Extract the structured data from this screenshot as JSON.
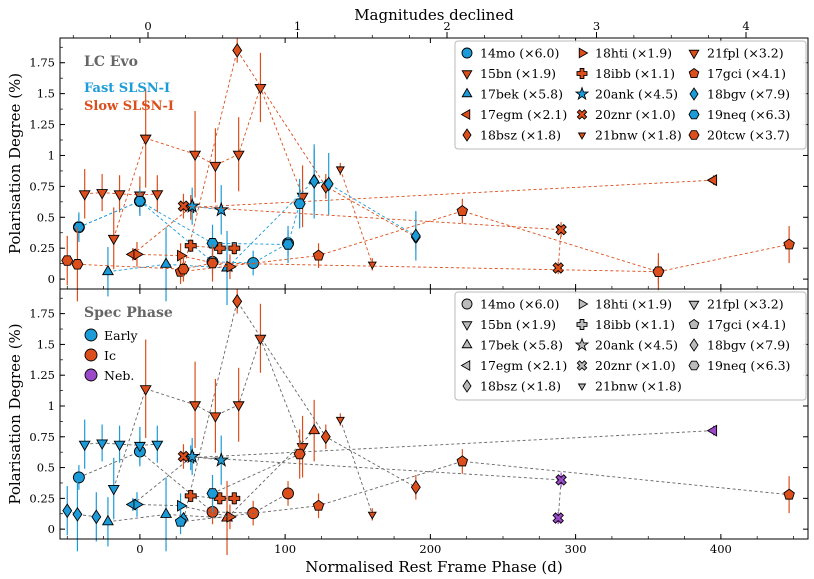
{
  "chart_data": [
    {
      "type": "scatter",
      "panel": "top",
      "title": "LC Evo",
      "top_axis_label": "Magnitudes declined",
      "top_ticks": [
        0,
        1,
        2,
        3,
        4
      ],
      "xlabel": "",
      "ylabel": "Polarisation Degree (%)",
      "xlim": [
        -55,
        460
      ],
      "ylim": [
        -0.08,
        1.95
      ],
      "x_ticks": [
        0,
        100,
        200,
        300,
        400
      ],
      "y_ticks": [
        0.0,
        0.25,
        0.5,
        0.75,
        1.0,
        1.25,
        1.5,
        1.75
      ],
      "group_labels": [
        {
          "label": "Fast SLSN-I",
          "color": "#1b9bd7"
        },
        {
          "label": "Slow SLSN-I",
          "color": "#dc4f1c"
        }
      ],
      "legend": [
        "14mo (×6.0)",
        "15bn (×1.9)",
        "17bek (×5.8)",
        "17egm (×2.1)",
        "18bsz (×1.8)",
        "18hti (×1.9)",
        "18ibb (×1.1)",
        "20ank (×4.5)",
        "20znr (×1.0)",
        "21bnw (×1.8)",
        "21fpl (×3.2)",
        "17gci (×4.1)",
        "18bgv (×7.9)",
        "19neq (×6.3)",
        "20tcw (×3.7)"
      ],
      "series": [
        {
          "name": "14mo",
          "marker": "circle",
          "color": "#1b9bd7",
          "connect": true,
          "points": [
            [
              -42,
              0.42,
              0.1
            ],
            [
              0,
              0.63,
              0.12
            ],
            [
              50,
              0.14,
              0.1
            ],
            [
              78,
              0.13,
              0.1
            ],
            [
              102,
              0.29,
              0.1
            ]
          ]
        },
        {
          "name": "15bn",
          "marker": "tri_down",
          "color": "#dc4f1c",
          "connect": true,
          "points": [
            [
              -18,
              0.33,
              0.25
            ],
            [
              4,
              1.14,
              0.4
            ],
            [
              38,
              1.01,
              0.35
            ],
            [
              52,
              0.92,
              0.3
            ],
            [
              68,
              1.01,
              0.3
            ],
            [
              83,
              1.55,
              0.28
            ],
            [
              112,
              0.67,
              0.25
            ]
          ]
        },
        {
          "name": "17bek",
          "marker": "tri_up",
          "color": "#1b9bd7",
          "connect": true,
          "points": [
            [
              -22,
              0.06,
              0.2
            ],
            [
              18,
              0.12,
              0.3
            ],
            [
              60,
              0.09,
              0.3
            ],
            [
              120,
              0.8,
              0.25
            ]
          ]
        },
        {
          "name": "17egm",
          "marker": "tri_left",
          "color": "#dc4f1c",
          "connect": true,
          "points": [
            [
              -5,
              0.2,
              0.05
            ],
            [
              35,
              0.58,
              0.1
            ],
            [
              395,
              0.8,
              0.04
            ]
          ]
        },
        {
          "name": "18bsz",
          "marker": "diamond",
          "color": "#dc4f1c",
          "connect": true,
          "points": [
            [
              30,
              0.08,
              0.05
            ],
            [
              67,
              1.85,
              0.1
            ],
            [
              128,
              0.75,
              0.1
            ],
            [
              190,
              0.34,
              0.1
            ]
          ]
        },
        {
          "name": "18hti",
          "marker": "tri_right",
          "color": "#dc4f1c",
          "connect": true,
          "points": [
            [
              -2,
              0.2,
              0.1
            ],
            [
              28,
              0.19,
              0.1
            ],
            [
              62,
              0.1,
              0.1
            ]
          ]
        },
        {
          "name": "18ibb",
          "marker": "plus",
          "color": "#dc4f1c",
          "connect": true,
          "points": [
            [
              35,
              0.27,
              0.05
            ],
            [
              55,
              0.25,
              0.05
            ],
            [
              65,
              0.25,
              0.05
            ]
          ]
        },
        {
          "name": "20ank",
          "marker": "star",
          "color": "#1b9bd7",
          "connect": true,
          "points": [
            [
              36,
              0.59,
              0.15
            ],
            [
              56,
              0.56,
              0.2
            ]
          ]
        },
        {
          "name": "20znr",
          "marker": "x",
          "color": "#dc4f1c",
          "connect": true,
          "points": [
            [
              30,
              0.59,
              0.1
            ],
            [
              290,
              0.4,
              0.06
            ],
            [
              288,
              0.09,
              0.05
            ]
          ]
        },
        {
          "name": "21bnw",
          "marker": "tri_down_s",
          "color": "#dc4f1c",
          "connect": true,
          "points": [
            [
              138,
              0.89,
              0.05
            ],
            [
              160,
              0.12,
              0.05
            ]
          ]
        },
        {
          "name": "21fpl",
          "marker": "tri_down",
          "color": "#dc4f1c",
          "connect": true,
          "points": [
            [
              -38,
              0.69,
              0.2
            ],
            [
              -26,
              0.7,
              0.15
            ],
            [
              -14,
              0.69,
              0.15
            ],
            [
              0,
              0.68,
              0.15
            ],
            [
              12,
              0.69,
              0.15
            ]
          ]
        },
        {
          "name": "17gci",
          "marker": "pentagon",
          "color": "#dc4f1c",
          "connect": true,
          "points": [
            [
              28,
              0.06,
              0.1
            ],
            [
              123,
              0.19,
              0.1
            ],
            [
              222,
              0.55,
              0.1
            ],
            [
              357,
              0.06,
              0.15
            ],
            [
              447,
              0.28,
              0.15
            ]
          ]
        },
        {
          "name": "18bgv",
          "marker": "diamond",
          "color": "#1b9bd7",
          "connect": true,
          "points": [
            [
              120,
              0.79,
              0.3
            ],
            [
              130,
              0.77,
              0.25
            ],
            [
              190,
              0.35,
              0.2
            ]
          ]
        },
        {
          "name": "19neq",
          "marker": "hexagon",
          "color": "#1b9bd7",
          "connect": true,
          "points": [
            [
              -42,
              0.42,
              0.12
            ],
            [
              0,
              0.63,
              0.1
            ],
            [
              50,
              0.29,
              0.15
            ],
            [
              102,
              0.28,
              0.15
            ],
            [
              110,
              0.61,
              0.2
            ]
          ]
        },
        {
          "name": "20tcw",
          "marker": "hexagon",
          "color": "#dc4f1c",
          "connect": true,
          "points": [
            [
              -50,
              0.15,
              0.2
            ],
            [
              -43,
              0.12,
              0.3
            ],
            [
              30,
              0.08,
              0.1
            ],
            [
              50,
              0.13,
              0.15
            ],
            [
              357,
              0.06,
              0.1
            ]
          ]
        }
      ]
    },
    {
      "type": "scatter",
      "panel": "bottom",
      "title": "Spec Phase",
      "xlabel": "Normalised Rest Frame Phase (d)",
      "ylabel": "Polarisation Degree (%)",
      "xlim": [
        -55,
        460
      ],
      "ylim": [
        -0.08,
        1.95
      ],
      "x_ticks": [
        0,
        100,
        200,
        300,
        400
      ],
      "y_ticks": [
        0.0,
        0.25,
        0.5,
        0.75,
        1.0,
        1.25,
        1.5,
        1.75
      ],
      "color_legend": [
        {
          "label": "Early",
          "color": "#1b9bd7"
        },
        {
          "label": "Ic",
          "color": "#dc4f1c"
        },
        {
          "label": "Neb.",
          "color": "#9b49c8"
        }
      ],
      "legend": [
        "14mo (×6.0)",
        "15bn (×1.9)",
        "17bek (×5.8)",
        "17egm (×2.1)",
        "18bsz (×1.8)",
        "18hti (×1.9)",
        "18ibb (×1.1)",
        "20ank (×4.5)",
        "20znr (×1.0)",
        "21bnw (×1.8)",
        "21fpl (×3.2)",
        "17gci (×4.1)",
        "18bgv (×7.9)",
        "19neq (×6.3)"
      ],
      "series": [
        {
          "name": "14mo",
          "marker": "circle",
          "points": [
            [
              -42,
              0.42,
              0.1,
              "E"
            ],
            [
              0,
              0.63,
              0.12,
              "E"
            ],
            [
              50,
              0.14,
              0.1,
              "I"
            ],
            [
              78,
              0.13,
              0.1,
              "I"
            ],
            [
              102,
              0.29,
              0.1,
              "I"
            ]
          ]
        },
        {
          "name": "15bn",
          "marker": "tri_down",
          "points": [
            [
              -18,
              0.33,
              0.25,
              "E"
            ],
            [
              4,
              1.14,
              0.4,
              "I"
            ],
            [
              38,
              1.01,
              0.35,
              "I"
            ],
            [
              52,
              0.92,
              0.3,
              "I"
            ],
            [
              68,
              1.01,
              0.3,
              "I"
            ],
            [
              83,
              1.55,
              0.28,
              "I"
            ],
            [
              112,
              0.67,
              0.25,
              "I"
            ]
          ]
        },
        {
          "name": "17bek",
          "marker": "tri_up",
          "points": [
            [
              -22,
              0.06,
              0.2,
              "E"
            ],
            [
              18,
              0.12,
              0.3,
              "E"
            ],
            [
              60,
              0.09,
              0.3,
              "I"
            ],
            [
              120,
              0.8,
              0.25,
              "I"
            ]
          ]
        },
        {
          "name": "17egm",
          "marker": "tri_left",
          "points": [
            [
              -5,
              0.2,
              0.05,
              "E"
            ],
            [
              35,
              0.58,
              0.1,
              "E"
            ],
            [
              395,
              0.8,
              0.04,
              "N"
            ]
          ]
        },
        {
          "name": "18bsz",
          "marker": "diamond",
          "points": [
            [
              30,
              0.08,
              0.05,
              "E"
            ],
            [
              67,
              1.85,
              0.1,
              "I"
            ],
            [
              128,
              0.75,
              0.1,
              "I"
            ],
            [
              190,
              0.34,
              0.1,
              "I"
            ]
          ]
        },
        {
          "name": "18hti",
          "marker": "tri_right",
          "points": [
            [
              -2,
              0.2,
              0.1,
              "E"
            ],
            [
              28,
              0.19,
              0.1,
              "E"
            ],
            [
              62,
              0.1,
              0.1,
              "I"
            ]
          ]
        },
        {
          "name": "18ibb",
          "marker": "plus",
          "points": [
            [
              35,
              0.27,
              0.05,
              "I"
            ],
            [
              55,
              0.25,
              0.05,
              "I"
            ],
            [
              65,
              0.25,
              0.05,
              "I"
            ]
          ]
        },
        {
          "name": "20ank",
          "marker": "star",
          "points": [
            [
              36,
              0.59,
              0.15,
              "E"
            ],
            [
              56,
              0.56,
              0.2,
              "E"
            ]
          ]
        },
        {
          "name": "20znr",
          "marker": "x",
          "points": [
            [
              30,
              0.59,
              0.1,
              "I"
            ],
            [
              290,
              0.4,
              0.06,
              "N"
            ],
            [
              288,
              0.09,
              0.05,
              "N"
            ]
          ]
        },
        {
          "name": "21bnw",
          "marker": "tri_down_s",
          "points": [
            [
              138,
              0.89,
              0.05,
              "I"
            ],
            [
              160,
              0.12,
              0.05,
              "I"
            ]
          ]
        },
        {
          "name": "21fpl",
          "marker": "tri_down",
          "points": [
            [
              -38,
              0.69,
              0.2,
              "E"
            ],
            [
              -26,
              0.7,
              0.15,
              "E"
            ],
            [
              -14,
              0.69,
              0.15,
              "E"
            ],
            [
              0,
              0.68,
              0.15,
              "E"
            ],
            [
              12,
              0.69,
              0.15,
              "E"
            ]
          ]
        },
        {
          "name": "17gci",
          "marker": "pentagon",
          "points": [
            [
              28,
              0.06,
              0.1,
              "E"
            ],
            [
              123,
              0.19,
              0.1,
              "I"
            ],
            [
              222,
              0.55,
              0.1,
              "I"
            ],
            [
              447,
              0.28,
              0.15,
              "I"
            ]
          ]
        },
        {
          "name": "18bgv",
          "marker": "diamond",
          "points": [
            [
              -50,
              0.15,
              0.2,
              "E"
            ],
            [
              -43,
              0.12,
              0.3,
              "E"
            ],
            [
              -30,
              0.1,
              0.2,
              "E"
            ]
          ]
        },
        {
          "name": "19neq",
          "marker": "hexagon",
          "points": [
            [
              50,
              0.29,
              0.15,
              "E"
            ],
            [
              110,
              0.61,
              0.2,
              "I"
            ]
          ]
        }
      ]
    }
  ]
}
